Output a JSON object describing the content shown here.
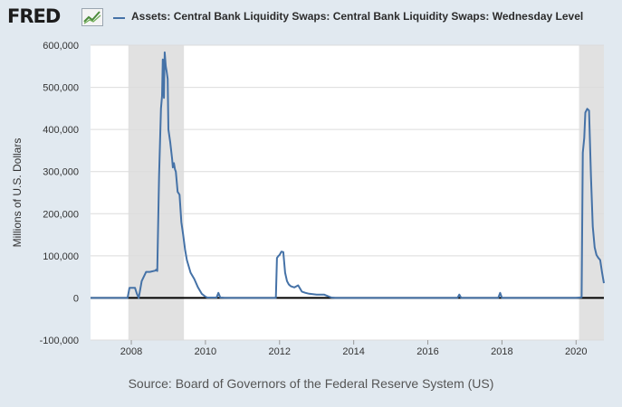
{
  "header": {
    "logo_text": "FRED",
    "logo_icon": "line-chart-icon",
    "legend_label": "Assets: Central Bank Liquidity Swaps: Central Bank Liquidity Swaps: Wednesday Level"
  },
  "colors": {
    "series": "#4572a7",
    "recession": "#e1e1e1",
    "background": "#e1e9f0",
    "plot": "#ffffff",
    "zero_line": "#000000"
  },
  "source": "Source: Board of Governors of the Federal Reserve System (US)",
  "chart_data": {
    "type": "line",
    "ylabel": "Millions of U.S. Dollars",
    "xlabel": "",
    "xlim": [
      2006.9,
      2020.75
    ],
    "ylim": [
      -100000,
      600000
    ],
    "x_ticks": [
      2008,
      2010,
      2012,
      2014,
      2016,
      2018,
      2020
    ],
    "x_tick_labels": [
      "2008",
      "2010",
      "2012",
      "2014",
      "2016",
      "2018",
      "2020"
    ],
    "y_ticks": [
      -100000,
      0,
      100000,
      200000,
      300000,
      400000,
      500000,
      600000
    ],
    "y_tick_labels": [
      "-100,000",
      "0",
      "100,000",
      "200,000",
      "300,000",
      "400,000",
      "500,000",
      "600,000"
    ],
    "grid": "horizontal",
    "recessions": [
      [
        2007.92,
        2009.42
      ],
      [
        2020.08,
        2020.75
      ]
    ],
    "series": [
      {
        "name": "Assets: Central Bank Liquidity Swaps: Central Bank Liquidity Swaps: Wednesday Level",
        "x": [
          2006.9,
          2007.9,
          2007.95,
          2008.1,
          2008.15,
          2008.2,
          2008.28,
          2008.4,
          2008.5,
          2008.65,
          2008.67,
          2008.7,
          2008.75,
          2008.8,
          2008.83,
          2008.85,
          2008.88,
          2008.9,
          2008.93,
          2008.95,
          2008.98,
          2009.0,
          2009.05,
          2009.1,
          2009.12,
          2009.15,
          2009.18,
          2009.2,
          2009.25,
          2009.3,
          2009.35,
          2009.4,
          2009.45,
          2009.5,
          2009.6,
          2009.7,
          2009.8,
          2009.9,
          2010.0,
          2010.05,
          2010.3,
          2010.35,
          2010.4,
          2010.5,
          2010.7,
          2011.5,
          2011.9,
          2011.93,
          2011.97,
          2012.0,
          2012.05,
          2012.1,
          2012.15,
          2012.2,
          2012.25,
          2012.3,
          2012.4,
          2012.5,
          2012.6,
          2012.7,
          2012.8,
          2013.0,
          2013.2,
          2013.25,
          2013.4,
          2013.5,
          2014.0,
          2015.0,
          2016.0,
          2016.8,
          2016.85,
          2016.9,
          2017.5,
          2017.9,
          2017.95,
          2018.0,
          2018.5,
          2019.0,
          2019.5,
          2020.0,
          2020.15,
          2020.18,
          2020.22,
          2020.25,
          2020.3,
          2020.35,
          2020.4,
          2020.45,
          2020.5,
          2020.55,
          2020.6,
          2020.65,
          2020.7,
          2020.75
        ],
        "values": [
          0,
          0,
          24000,
          24000,
          10000,
          0,
          40000,
          62000,
          62000,
          65000,
          67000,
          64000,
          290000,
          450000,
          480000,
          566000,
          475000,
          583000,
          550000,
          540000,
          520000,
          400000,
          370000,
          330000,
          310000,
          320000,
          305000,
          300000,
          252000,
          245000,
          180000,
          150000,
          115000,
          90000,
          60000,
          45000,
          25000,
          10000,
          3000,
          1000,
          1000,
          12000,
          1000,
          500,
          0,
          0,
          0,
          95000,
          100000,
          102000,
          110000,
          109000,
          60000,
          40000,
          32000,
          28000,
          25000,
          30000,
          15000,
          12000,
          10000,
          8000,
          8000,
          6000,
          1000,
          0,
          0,
          0,
          0,
          0,
          8000,
          0,
          0,
          0,
          12000,
          0,
          0,
          0,
          0,
          0,
          1500,
          345000,
          380000,
          440000,
          449000,
          445000,
          290000,
          170000,
          120000,
          102000,
          95000,
          90000,
          60000,
          35000
        ]
      }
    ]
  }
}
